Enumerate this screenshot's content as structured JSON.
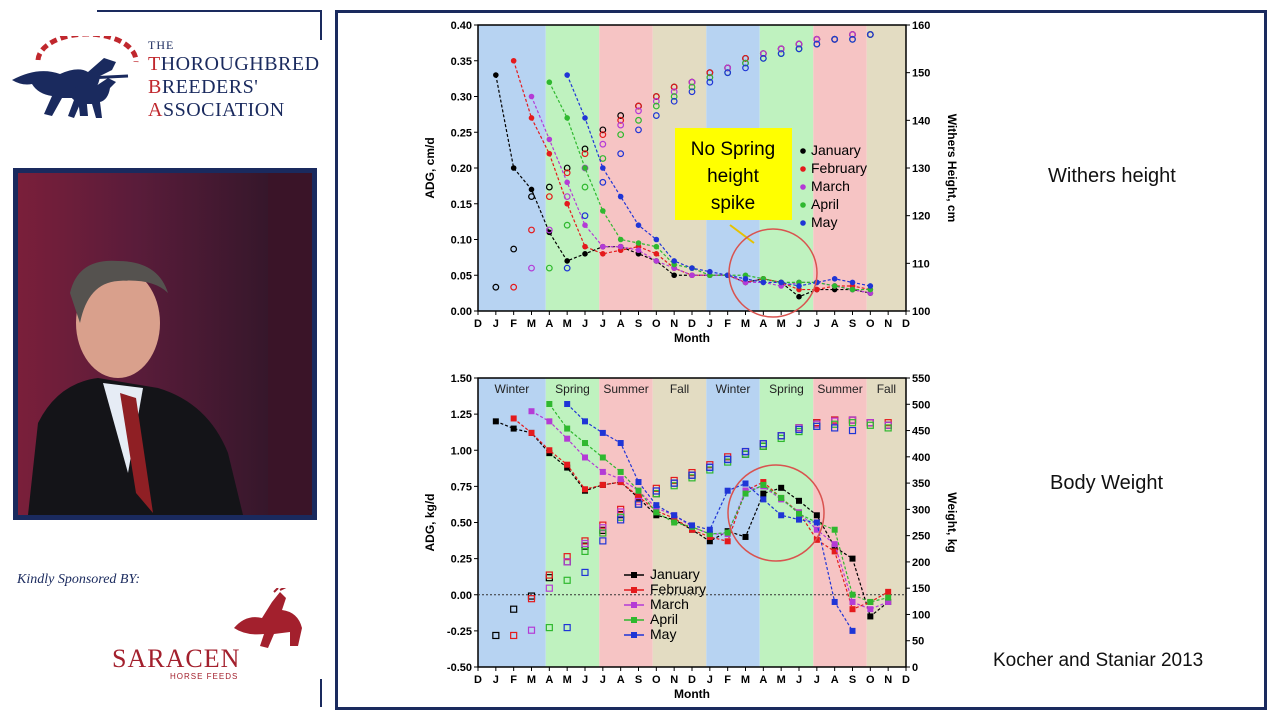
{
  "header": {
    "org_the": "THE",
    "org_lines": [
      "THOROUGHBRED",
      "BREEDERS'",
      "ASSOCIATION"
    ]
  },
  "sponsor": {
    "label": "Kindly Sponsored BY:",
    "name": "SARACEN",
    "sub": "HORSE FEEDS"
  },
  "slide_labels": {
    "withers": "Withers height",
    "weight": "Body Weight",
    "citation": "Kocher and Staniar 2013"
  },
  "colors": {
    "navy": "#1a2a5e",
    "red": "#c0272d",
    "January": "#000000",
    "February": "#e41a1c",
    "March": "#b43bd6",
    "April": "#2fb82f",
    "May": "#1f35d6",
    "winter_band": "#b7d3f2",
    "spring_band": "#bff2bf",
    "summer_band": "#f6c4c4",
    "fall_band": "#e3dcc2"
  },
  "months": [
    "D",
    "J",
    "F",
    "M",
    "A",
    "M",
    "J",
    "J",
    "A",
    "S",
    "O",
    "N",
    "D",
    "J",
    "F",
    "M",
    "A",
    "M",
    "J",
    "J",
    "A",
    "S",
    "O",
    "N",
    "D"
  ],
  "chart_data": [
    {
      "type": "line",
      "title": "",
      "xlabel": "Month",
      "ylabel": "ADG, cm/d",
      "y2label": "Withers Height, cm",
      "ylim": [
        0,
        0.4
      ],
      "y2lim": [
        100,
        160
      ],
      "yticks": [
        "0.00",
        "0.05",
        "0.10",
        "0.15",
        "0.20",
        "0.25",
        "0.30",
        "0.35",
        "0.40"
      ],
      "y2ticks": [
        "100",
        "110",
        "120",
        "130",
        "140",
        "150",
        "160"
      ],
      "annotation": "No Spring height spike",
      "legend": [
        "January",
        "February",
        "March",
        "April",
        "May"
      ],
      "series": [
        {
          "name": "January",
          "start": 1.5,
          "adg": [
            0.33,
            0.2,
            0.17,
            0.11,
            0.07,
            0.08,
            0.09,
            0.09,
            0.08,
            0.07,
            0.05,
            0.05,
            0.05,
            0.05,
            0.04,
            0.045,
            0.04,
            0.02,
            0.03,
            0.03,
            0.03,
            0.025
          ],
          "height": [
            105,
            113,
            124,
            126,
            130,
            134,
            138,
            141,
            143,
            145,
            147,
            148,
            150,
            151,
            153,
            154,
            155,
            156,
            157,
            157,
            158,
            158
          ]
        },
        {
          "name": "February",
          "start": 2.5,
          "adg": [
            0.35,
            0.27,
            0.22,
            0.15,
            0.09,
            0.08,
            0.085,
            0.09,
            0.08,
            0.06,
            0.05,
            0.05,
            0.05,
            0.04,
            0.045,
            0.04,
            0.03,
            0.03,
            0.035,
            0.035,
            0.03
          ],
          "height": [
            105,
            117,
            124,
            129,
            133,
            137,
            140,
            143,
            145,
            147,
            148,
            150,
            151,
            153,
            154,
            155,
            156,
            157,
            157,
            158,
            158
          ]
        },
        {
          "name": "March",
          "start": 3.5,
          "adg": [
            0.3,
            0.24,
            0.18,
            0.12,
            0.09,
            0.09,
            0.085,
            0.07,
            0.06,
            0.05,
            0.05,
            0.05,
            0.04,
            0.04,
            0.035,
            0.04,
            0.04,
            0.035,
            0.03,
            0.025
          ],
          "height": [
            109,
            117,
            124,
            130,
            135,
            139,
            142,
            144,
            146,
            148,
            149,
            151,
            152,
            154,
            155,
            156,
            157,
            157,
            158,
            158
          ]
        },
        {
          "name": "April",
          "start": 4.5,
          "adg": [
            0.32,
            0.27,
            0.2,
            0.14,
            0.1,
            0.095,
            0.09,
            0.065,
            0.06,
            0.05,
            0.05,
            0.05,
            0.045,
            0.04,
            0.04,
            0.04,
            0.035,
            0.03,
            0.03
          ],
          "height": [
            109,
            118,
            126,
            132,
            137,
            140,
            143,
            145,
            147,
            149,
            150,
            152,
            153,
            154,
            155,
            156,
            157,
            157,
            158
          ]
        },
        {
          "name": "May",
          "start": 5.5,
          "adg": [
            0.33,
            0.27,
            0.2,
            0.16,
            0.12,
            0.1,
            0.07,
            0.06,
            0.055,
            0.05,
            0.045,
            0.04,
            0.04,
            0.035,
            0.04,
            0.045,
            0.04,
            0.035
          ],
          "height": [
            109,
            120,
            127,
            133,
            138,
            141,
            144,
            146,
            148,
            150,
            151,
            153,
            154,
            155,
            156,
            157,
            157,
            158
          ]
        }
      ]
    },
    {
      "type": "line",
      "title": "",
      "xlabel": "Month",
      "ylabel": "ADG, kg/d",
      "y2label": "Weight, kg",
      "ylim": [
        -0.5,
        1.5
      ],
      "y2lim": [
        0,
        550
      ],
      "yticks": [
        "-0.50",
        "-0.25",
        "0.00",
        "0.25",
        "0.50",
        "0.75",
        "1.00",
        "1.25",
        "1.50"
      ],
      "y2ticks": [
        "0",
        "50",
        "100",
        "150",
        "200",
        "250",
        "300",
        "350",
        "400",
        "450",
        "500",
        "550"
      ],
      "seasons": [
        "Winter",
        "Spring",
        "Summer",
        "Fall",
        "Winter",
        "Spring",
        "Summer",
        "Fall"
      ],
      "legend": [
        "January",
        "February",
        "March",
        "April",
        "May"
      ],
      "series": [
        {
          "name": "January",
          "start": 1.5,
          "adg": [
            1.2,
            1.15,
            1.12,
            0.98,
            0.88,
            0.72,
            0.76,
            0.78,
            0.67,
            0.55,
            0.52,
            0.45,
            0.37,
            0.44,
            0.4,
            0.7,
            0.74,
            0.65,
            0.55,
            0.33,
            0.25,
            -0.15,
            -0.05
          ],
          "weight": [
            60,
            110,
            135,
            170,
            200,
            230,
            260,
            290,
            310,
            330,
            350,
            365,
            380,
            395,
            405,
            420,
            440,
            455,
            465,
            470,
            470,
            465,
            460
          ]
        },
        {
          "name": "February",
          "start": 2.5,
          "adg": [
            1.22,
            1.12,
            1.0,
            0.9,
            0.73,
            0.76,
            0.78,
            0.68,
            0.58,
            0.53,
            0.45,
            0.4,
            0.37,
            0.72,
            0.78,
            0.67,
            0.57,
            0.38,
            0.3,
            -0.1,
            -0.05,
            0.02
          ],
          "weight": [
            60,
            130,
            175,
            210,
            240,
            270,
            300,
            320,
            340,
            355,
            370,
            385,
            400,
            410,
            425,
            440,
            455,
            465,
            470,
            470,
            465,
            465
          ]
        },
        {
          "name": "March",
          "start": 3.5,
          "adg": [
            1.27,
            1.2,
            1.08,
            0.95,
            0.85,
            0.8,
            0.72,
            0.6,
            0.55,
            0.47,
            0.42,
            0.42,
            0.72,
            0.75,
            0.66,
            0.57,
            0.45,
            0.35,
            -0.05,
            -0.1,
            -0.05
          ],
          "weight": [
            70,
            150,
            200,
            235,
            265,
            295,
            315,
            335,
            350,
            365,
            380,
            395,
            410,
            425,
            440,
            455,
            462,
            468,
            470,
            465,
            460
          ]
        },
        {
          "name": "April",
          "start": 4.5,
          "adg": [
            1.32,
            1.15,
            1.05,
            0.95,
            0.85,
            0.72,
            0.57,
            0.5,
            0.47,
            0.42,
            0.43,
            0.7,
            0.76,
            0.67,
            0.56,
            0.5,
            0.45,
            0.0,
            -0.05,
            -0.02
          ],
          "weight": [
            75,
            165,
            220,
            255,
            285,
            310,
            330,
            345,
            360,
            375,
            390,
            405,
            420,
            435,
            448,
            458,
            462,
            465,
            460,
            455
          ]
        },
        {
          "name": "May",
          "start": 5.5,
          "adg": [
            1.32,
            1.2,
            1.12,
            1.05,
            0.78,
            0.62,
            0.55,
            0.48,
            0.45,
            0.72,
            0.77,
            0.66,
            0.55,
            0.52,
            0.5,
            -0.05,
            -0.25
          ],
          "weight": [
            75,
            180,
            240,
            280,
            310,
            335,
            350,
            365,
            380,
            395,
            410,
            425,
            440,
            452,
            458,
            455,
            450
          ]
        }
      ]
    }
  ]
}
